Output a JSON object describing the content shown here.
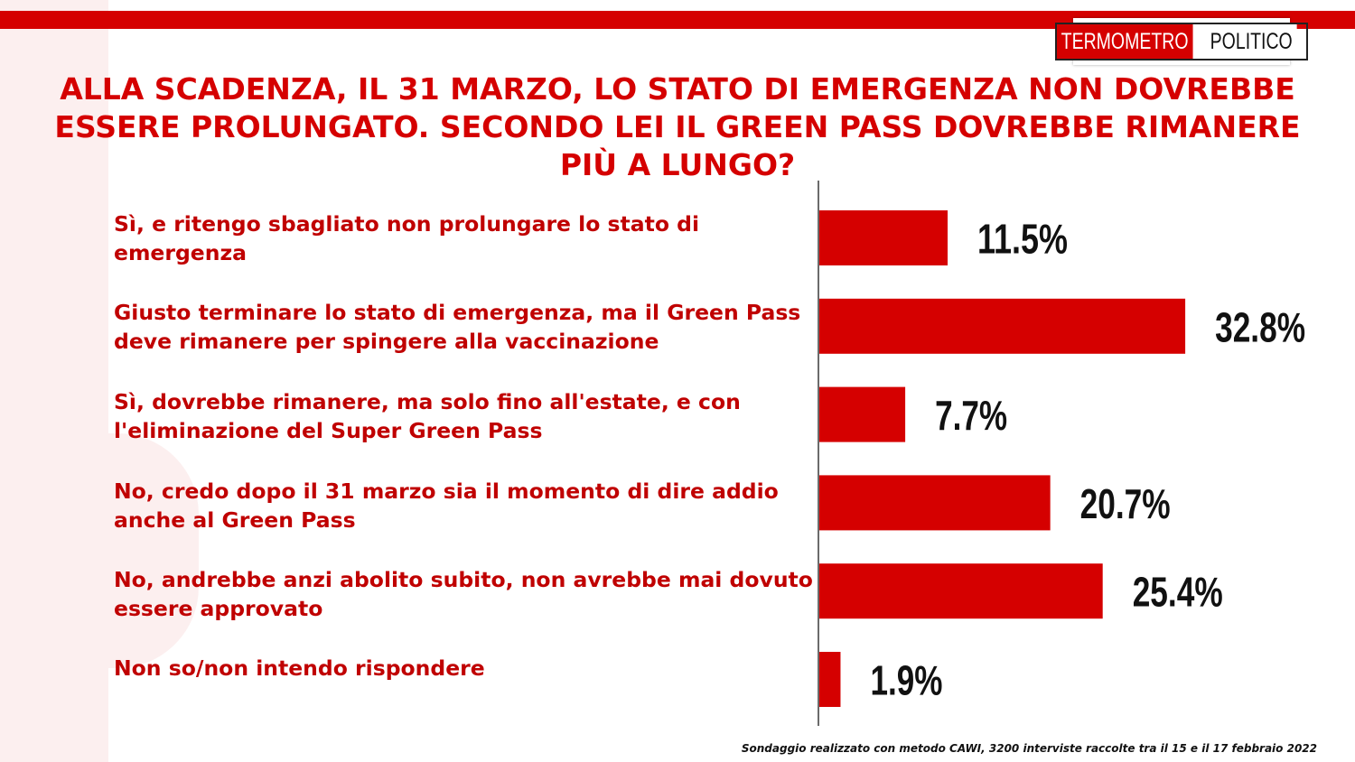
{
  "brand": {
    "name_part1": "TERMOMETRO",
    "name_part2": "POLITICO",
    "accent_color": "#d50000"
  },
  "title": "ALLA SCADENZA, IL 31 MARZO, LO STATO DI EMERGENZA NON DOVREBBE ESSERE PROLUNGATO. SECONDO LEI IL GREEN PASS DOVREBBE RIMANERE PIÙ A LUNGO?",
  "footer": "Sondaggio realizzato con metodo CAWI, 3200 interviste raccolte tra il 15 e il 17 febbraio 2022",
  "chart_data": {
    "type": "bar",
    "orientation": "horizontal",
    "categories": [
      "Sì, e ritengo sbagliato non prolungare lo stato di emergenza",
      "Giusto terminare lo stato di emergenza, ma il Green Pass deve rimanere per spingere alla vaccinazione",
      "Sì, dovrebbe rimanere, ma solo fino all'estate, e con l'eliminazione del Super Green Pass",
      "No, credo dopo il 31 marzo sia il momento di dire addio anche al Green Pass",
      "No, andrebbe anzi abolito subito, non avrebbe mai dovuto essere approvato",
      "Non so/non intendo rispondere"
    ],
    "values": [
      11.5,
      32.8,
      7.7,
      20.7,
      25.4,
      1.9
    ],
    "value_labels": [
      "11.5%",
      "32.8%",
      "7.7%",
      "20.7%",
      "25.4%",
      "1.9%"
    ],
    "unit": "%",
    "bar_color": "#d50000",
    "grid": false,
    "legend": "none"
  }
}
